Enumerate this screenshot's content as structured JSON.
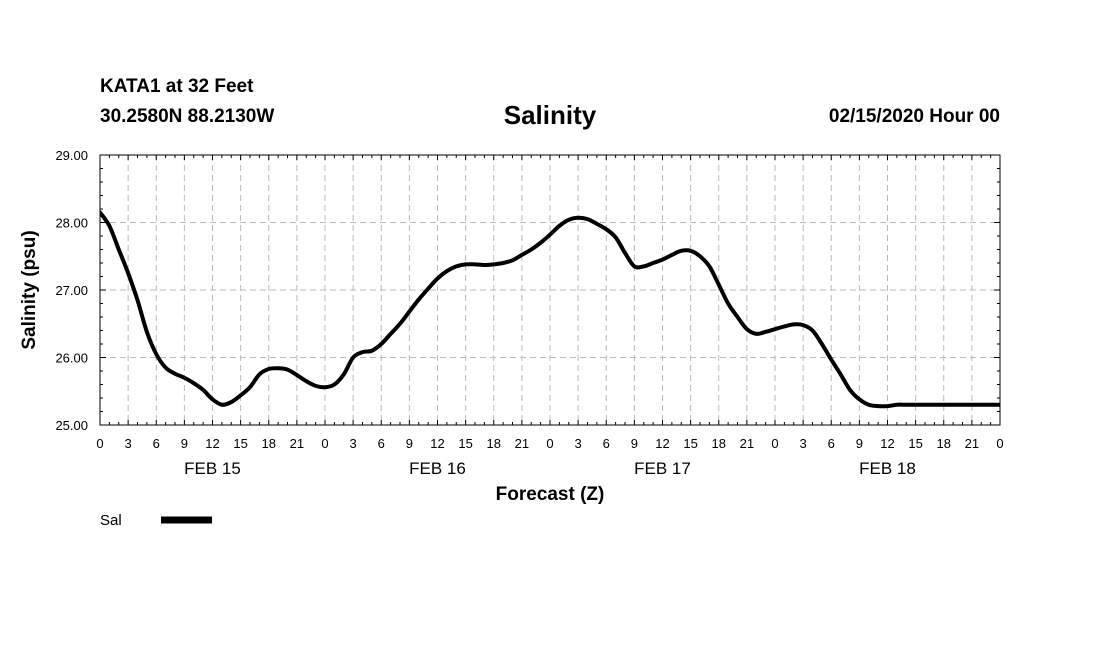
{
  "header": {
    "station": "KATA1 at 32 Feet",
    "coords": "30.2580N 88.2130W",
    "title": "Salinity",
    "run": "02/15/2020 Hour 00"
  },
  "chart_data": {
    "type": "line",
    "title": "Salinity",
    "xlabel": "Forecast (Z)",
    "ylabel": "Salinity (psu)",
    "ylim": [
      25.0,
      29.0
    ],
    "xlim": [
      0,
      96
    ],
    "grid": true,
    "y_ticks": [
      "25.00",
      "26.00",
      "27.00",
      "28.00",
      "29.00"
    ],
    "x_tick_labels": [
      "0",
      "3",
      "6",
      "9",
      "12",
      "15",
      "18",
      "21",
      "0",
      "3",
      "6",
      "9",
      "12",
      "15",
      "18",
      "21",
      "0",
      "3",
      "6",
      "9",
      "12",
      "15",
      "18",
      "21",
      "0",
      "3",
      "6",
      "9",
      "12",
      "15",
      "18",
      "21",
      "0"
    ],
    "day_labels": [
      {
        "label": "FEB 15",
        "hour": 12
      },
      {
        "label": "FEB 16",
        "hour": 36
      },
      {
        "label": "FEB 17",
        "hour": 60
      },
      {
        "label": "FEB 18",
        "hour": 84
      }
    ],
    "legend": [
      {
        "name": "Sal",
        "color": "#000000"
      }
    ],
    "series": [
      {
        "name": "Sal",
        "color": "#000000",
        "x": [
          0,
          1,
          2,
          3,
          4,
          5,
          6,
          7,
          8,
          9,
          10,
          11,
          12,
          13,
          14,
          15,
          16,
          17,
          18,
          19,
          20,
          21,
          22,
          23,
          24,
          25,
          26,
          27,
          28,
          29,
          30,
          31,
          32,
          33,
          34,
          35,
          36,
          37,
          38,
          39,
          40,
          41,
          42,
          43,
          44,
          45,
          46,
          47,
          48,
          49,
          50,
          51,
          52,
          53,
          54,
          55,
          56,
          57,
          58,
          59,
          60,
          61,
          62,
          63,
          64,
          65,
          66,
          67,
          68,
          69,
          70,
          71,
          72,
          73,
          74,
          75,
          76,
          77,
          78,
          79,
          80,
          81,
          82,
          83,
          84,
          85,
          86,
          87,
          88,
          89,
          90,
          91,
          92,
          93,
          94,
          95,
          96
        ],
        "values": [
          28.15,
          27.95,
          27.6,
          27.25,
          26.85,
          26.38,
          26.05,
          25.85,
          25.76,
          25.7,
          25.62,
          25.52,
          25.38,
          25.3,
          25.34,
          25.44,
          25.56,
          25.75,
          25.83,
          25.84,
          25.82,
          25.74,
          25.65,
          25.58,
          25.56,
          25.6,
          25.75,
          26.0,
          26.08,
          26.1,
          26.2,
          26.35,
          26.5,
          26.68,
          26.86,
          27.02,
          27.17,
          27.28,
          27.35,
          27.38,
          27.38,
          27.37,
          27.38,
          27.4,
          27.44,
          27.52,
          27.6,
          27.7,
          27.82,
          27.95,
          28.04,
          28.07,
          28.05,
          27.98,
          27.9,
          27.78,
          27.55,
          27.35,
          27.35,
          27.4,
          27.45,
          27.52,
          27.58,
          27.58,
          27.5,
          27.35,
          27.08,
          26.8,
          26.6,
          26.42,
          26.35,
          26.38,
          26.42,
          26.46,
          26.49,
          26.48,
          26.4,
          26.2,
          25.97,
          25.75,
          25.52,
          25.38,
          25.3,
          25.28,
          25.28,
          25.3,
          25.3,
          25.3,
          25.3,
          25.3,
          25.3,
          25.3,
          25.3,
          25.3,
          25.3,
          25.3,
          25.3
        ]
      }
    ]
  }
}
